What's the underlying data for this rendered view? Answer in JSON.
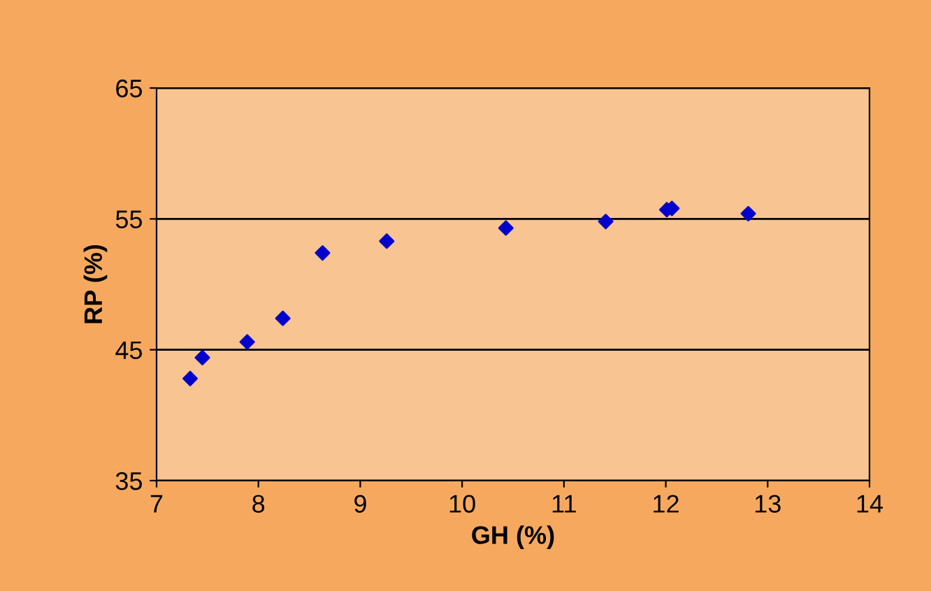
{
  "chart_data": {
    "type": "scatter",
    "xlabel": "GH (%)",
    "ylabel": "RP (%)",
    "x": [
      7.33,
      7.45,
      7.89,
      8.24,
      8.63,
      9.26,
      10.43,
      11.41,
      12.01,
      12.06,
      12.81
    ],
    "series": [
      {
        "color": "#0000cc",
        "values": [
          42.8,
          44.4,
          45.6,
          47.4,
          52.4,
          53.3,
          54.3,
          54.8,
          55.7,
          55.8,
          55.4
        ]
      }
    ],
    "xlim": [
      7,
      14
    ],
    "xticks": [
      7,
      8,
      9,
      10,
      11,
      12,
      13,
      14
    ],
    "ylim": [
      35,
      65
    ],
    "yticks": [
      35,
      45,
      55,
      65
    ],
    "grid": "y",
    "marker": "diamond",
    "legend": false
  }
}
